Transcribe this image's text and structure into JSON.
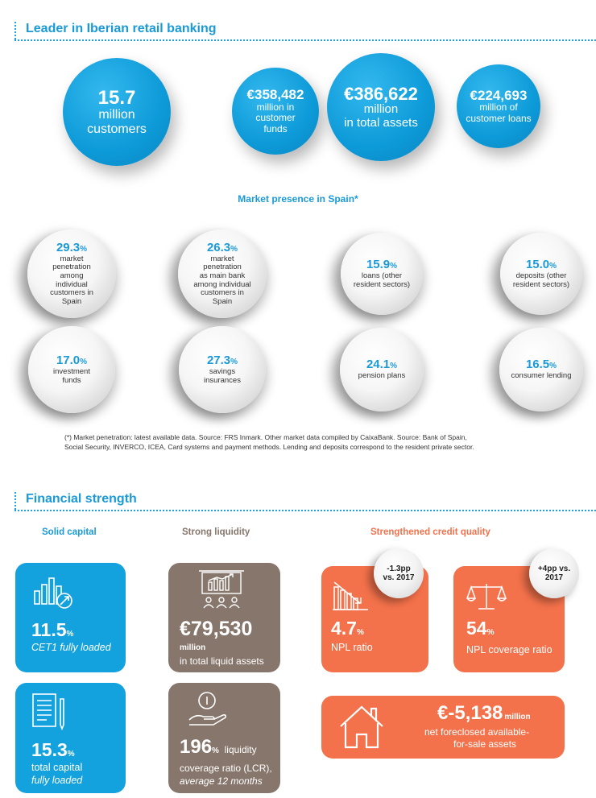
{
  "section1": {
    "title": "Leader in Iberian retail banking"
  },
  "kpis": {
    "customers": {
      "value": "15.7",
      "line1": "million",
      "line2": "customers"
    },
    "funds": {
      "value": "€358,482",
      "line1": "million in",
      "line2": "customer",
      "line3": "funds"
    },
    "assets": {
      "value": "€386,622",
      "line1": "million",
      "line2": "in total assets"
    },
    "loans": {
      "value": "€224,693",
      "line1": "million of",
      "line2": "customer loans"
    }
  },
  "market": {
    "title": "Market presence in Spain*",
    "items": [
      {
        "value": "29.3",
        "unit": "%",
        "lines": [
          "market",
          "penetration",
          "among",
          "individual",
          "customers in",
          "Spain"
        ]
      },
      {
        "value": "26.3",
        "unit": "%",
        "lines": [
          "market",
          "penetration",
          "as main bank",
          "among individual",
          "customers in",
          "Spain"
        ]
      },
      {
        "value": "15.9",
        "unit": "%",
        "lines": [
          "loans (other",
          "resident sectors)"
        ]
      },
      {
        "value": "15.0",
        "unit": "%",
        "lines": [
          "deposits (other",
          "resident sectors)"
        ]
      },
      {
        "value": "17.0",
        "unit": "%",
        "lines": [
          "investment",
          "funds"
        ]
      },
      {
        "value": "27.3",
        "unit": "%",
        "lines": [
          "savings",
          "insurances"
        ]
      },
      {
        "value": "24.1",
        "unit": "%",
        "lines": [
          "pension plans"
        ]
      },
      {
        "value": "16.5",
        "unit": "%",
        "lines": [
          "consumer lending"
        ]
      }
    ],
    "footnote_line1": "(*) Market penetration: latest available data. Source: FRS Inmark.  Other market data compiled by CaixaBank. Source: Bank of Spain,",
    "footnote_line2": "Social Security, INVERCO, ICEA, Card systems and payment methods. Lending and deposits correspond to the resident private sector."
  },
  "section2": {
    "title": "Financial strength"
  },
  "columns": {
    "capital": "Solid capital",
    "liquidity": "Strong liquidity",
    "credit": "Strengthened credit quality"
  },
  "cards": {
    "cet1": {
      "value": "11.5",
      "unit": "%",
      "label": "CET1 fully loaded"
    },
    "total_capital": {
      "value": "15.3",
      "unit": "%",
      "label1": "total capital",
      "label2": "fully loaded"
    },
    "liquid_assets": {
      "value": "€79,530",
      "label1": "million",
      "label2": "in total liquid assets"
    },
    "lcr": {
      "value": "196",
      "unit": "%",
      "label0": "liquidity",
      "label1": "coverage ratio (LCR),",
      "label2": "average 12 months"
    },
    "npl": {
      "value": "4.7",
      "unit": "%",
      "label": "NPL ratio",
      "badge1": "-1.3pp",
      "badge2": "vs. 2017"
    },
    "coverage": {
      "value": "54",
      "unit": "%",
      "label": "NPL coverage ratio",
      "badge1": "+4pp vs.",
      "badge2": "2017"
    },
    "foreclosed": {
      "value": "€-5,138",
      "unit": "million",
      "label1": "net foreclosed available-",
      "label2": "for-sale assets"
    }
  },
  "colors": {
    "blue": "#14a2de",
    "brown": "#86766c",
    "orange": "#f4724b"
  }
}
